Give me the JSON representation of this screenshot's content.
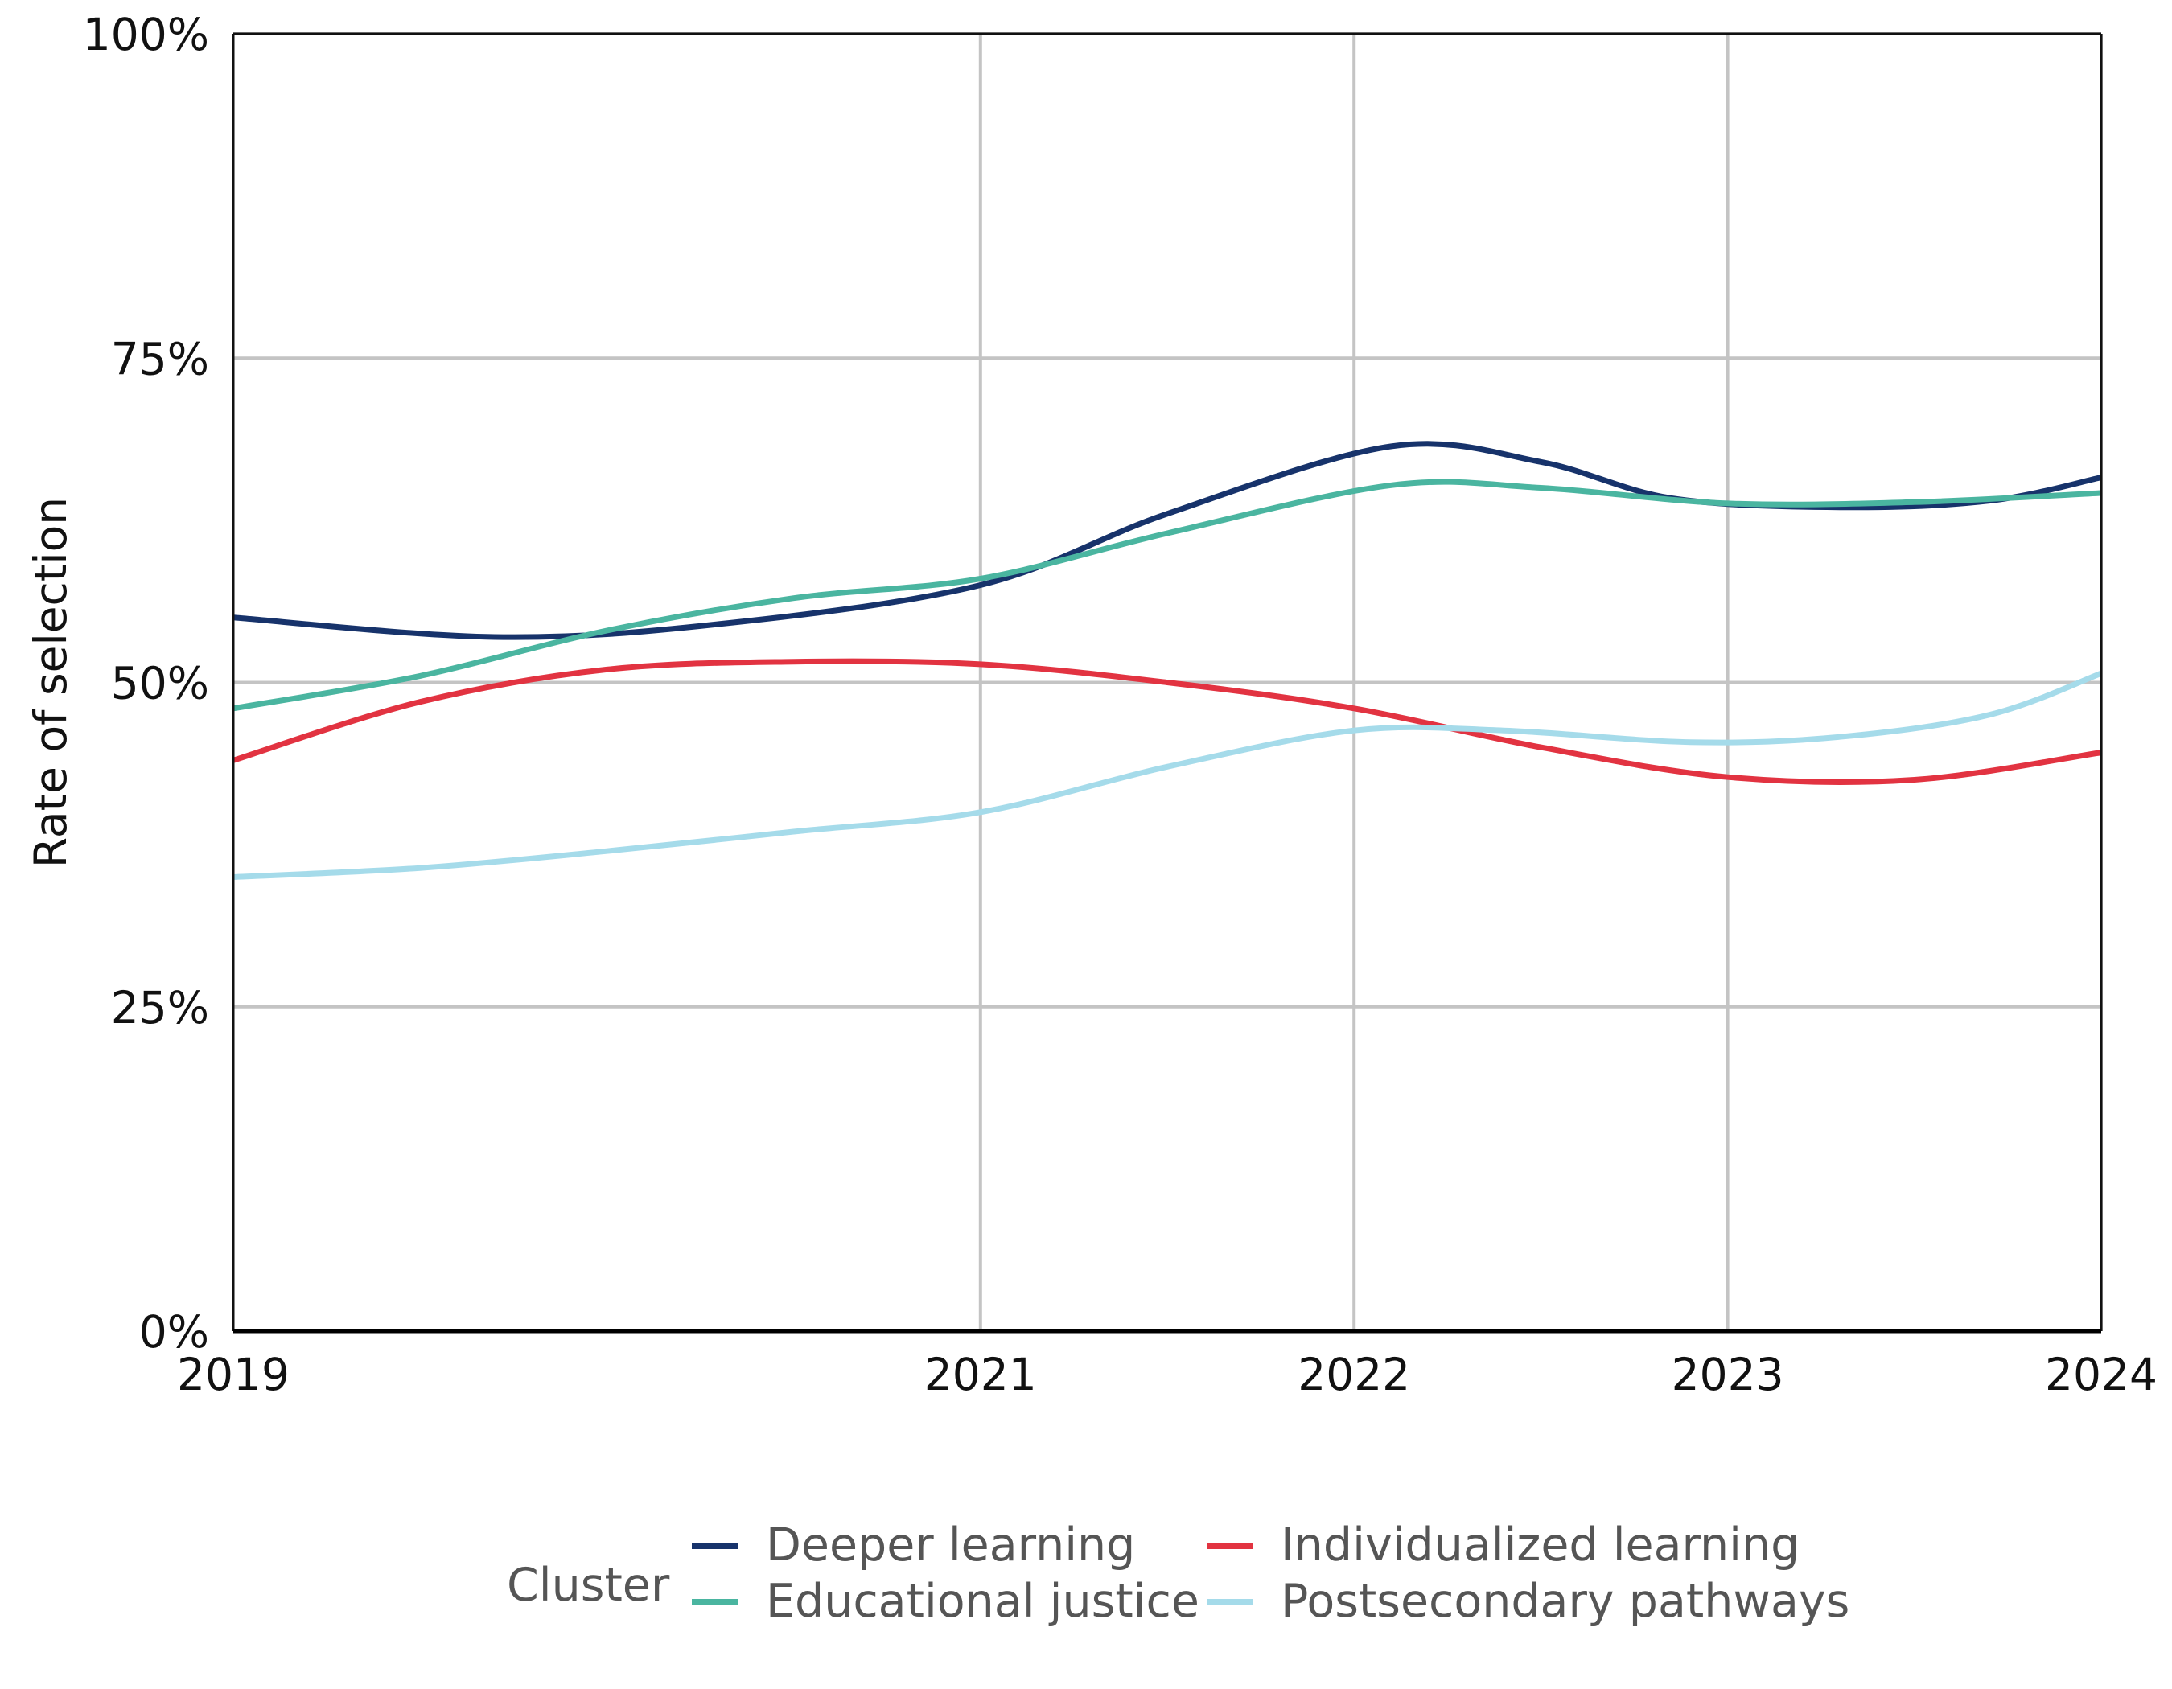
{
  "chart_data": {
    "type": "line",
    "ylabel": "Rate of selection",
    "xlabel": "",
    "x": [
      2019,
      2021,
      2022,
      2023,
      2024
    ],
    "x_ticks": [
      "2019",
      "2021",
      "2022",
      "2023",
      "2024"
    ],
    "xlim": [
      2019,
      2024
    ],
    "y_ticks": [
      "0%",
      "25%",
      "50%",
      "75%",
      "100%"
    ],
    "y_tick_values": [
      0,
      25,
      50,
      75,
      100
    ],
    "ylim": [
      0,
      100
    ],
    "grid": true,
    "legend_title": "Cluster",
    "legend_position": "bottom",
    "series": [
      {
        "name": "Deeper learning",
        "color": "#17336b",
        "points": [
          [
            2019,
            55
          ],
          [
            2019.7,
            53.5
          ],
          [
            2020.3,
            54.5
          ],
          [
            2021,
            57.5
          ],
          [
            2021.5,
            63
          ],
          [
            2022.1,
            68.2
          ],
          [
            2022.5,
            67
          ],
          [
            2022.85,
            64.2
          ],
          [
            2023.3,
            63.5
          ],
          [
            2023.7,
            64
          ],
          [
            2024,
            65.8
          ]
        ]
      },
      {
        "name": "Educational justice",
        "color": "#4ab5a0",
        "points": [
          [
            2019,
            48
          ],
          [
            2019.5,
            50.5
          ],
          [
            2020,
            54
          ],
          [
            2020.5,
            56.5
          ],
          [
            2021,
            58
          ],
          [
            2021.5,
            61.5
          ],
          [
            2022.1,
            65.2
          ],
          [
            2022.5,
            65
          ],
          [
            2023,
            63.8
          ],
          [
            2023.5,
            63.9
          ],
          [
            2024,
            64.6
          ]
        ]
      },
      {
        "name": "Individualized learning",
        "color": "#e23341",
        "points": [
          [
            2019,
            44
          ],
          [
            2019.5,
            48.5
          ],
          [
            2020,
            51
          ],
          [
            2020.5,
            51.6
          ],
          [
            2021,
            51.4
          ],
          [
            2021.5,
            50
          ],
          [
            2022,
            48
          ],
          [
            2022.5,
            45
          ],
          [
            2023,
            42.7
          ],
          [
            2023.5,
            42.5
          ],
          [
            2024,
            44.6
          ]
        ]
      },
      {
        "name": "Postsecondary pathways",
        "color": "#a5dbea",
        "points": [
          [
            2019,
            35
          ],
          [
            2019.5,
            35.7
          ],
          [
            2020,
            37
          ],
          [
            2020.5,
            38.5
          ],
          [
            2021,
            40
          ],
          [
            2021.5,
            43.5
          ],
          [
            2022,
            46.3
          ],
          [
            2022.4,
            46.3
          ],
          [
            2022.9,
            45.4
          ],
          [
            2023.3,
            45.8
          ],
          [
            2023.7,
            47.5
          ],
          [
            2024,
            50.7
          ]
        ]
      }
    ]
  }
}
